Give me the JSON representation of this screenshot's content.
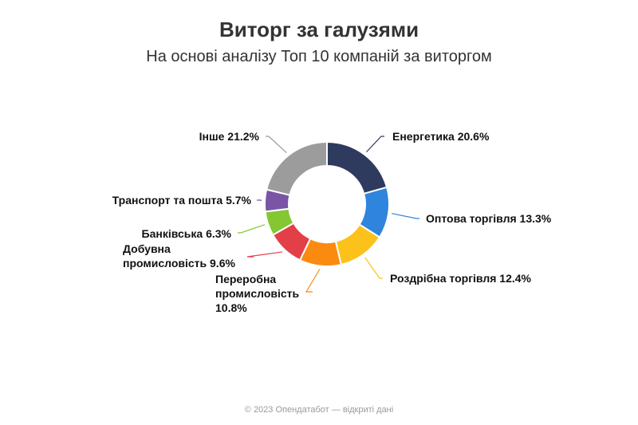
{
  "title": "Виторг за галузями",
  "subtitle": "На основі аналізу Топ 10 компаній за виторгом",
  "footer": "© 2023 Опендатабот — відкриті дані",
  "chart_data": {
    "type": "pie",
    "donut": true,
    "title": "Виторг за галузями",
    "subtitle": "На основі аналізу Топ 10 компаній за виторгом",
    "unit": "%",
    "slices": [
      {
        "name": "Енергетика",
        "value": 20.6,
        "color": "#2e3b5e"
      },
      {
        "name": "Оптова торгівля",
        "value": 13.3,
        "color": "#2f84de"
      },
      {
        "name": "Роздрібна торгівля",
        "value": 12.4,
        "color": "#fcc21b"
      },
      {
        "name": "Переробна промисловість",
        "value": 10.8,
        "color": "#fb8a11"
      },
      {
        "name": "Добувна промисловість",
        "value": 9.6,
        "color": "#e23f47"
      },
      {
        "name": "Банківська",
        "value": 6.3,
        "color": "#84c732"
      },
      {
        "name": "Транспорт та пошта",
        "value": 5.7,
        "color": "#7a54a5"
      },
      {
        "name": "Інше",
        "value": 21.2,
        "color": "#9c9c9c"
      }
    ]
  }
}
